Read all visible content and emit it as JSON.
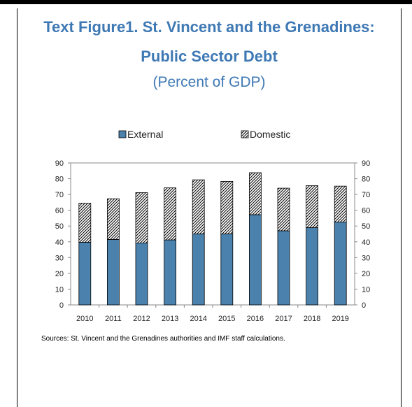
{
  "title_line1": "Text Figure1. St. Vincent and the Grenadines:",
  "title_line2": "Public Sector Debt",
  "subtitle": "(Percent of GDP)",
  "source": "Sources: St. Vincent and the Grenadines authorities and IMF staff calculations.",
  "colors": {
    "external": "#4a81ad",
    "domestic_hatch": "#000000",
    "title": "#3f79b4"
  },
  "chart_data": {
    "type": "bar",
    "stacked": true,
    "categories": [
      "2010",
      "2011",
      "2012",
      "2013",
      "2014",
      "2015",
      "2016",
      "2017",
      "2018",
      "2019"
    ],
    "series": [
      {
        "name": "External",
        "values": [
          39.7,
          41.5,
          39.2,
          41.2,
          45.0,
          45.0,
          57.2,
          47.0,
          49.0,
          52.5
        ],
        "style": "solid"
      },
      {
        "name": "Domestic",
        "values": [
          24.8,
          25.8,
          32.0,
          33.0,
          34.3,
          33.3,
          26.6,
          27.0,
          26.6,
          22.8
        ],
        "style": "hatched"
      }
    ],
    "ylim": [
      0,
      90
    ],
    "yticks": [
      0,
      10,
      20,
      30,
      40,
      50,
      60,
      70,
      80,
      90
    ],
    "secondary_yaxis": true,
    "legend_position": "top",
    "grid": false
  }
}
